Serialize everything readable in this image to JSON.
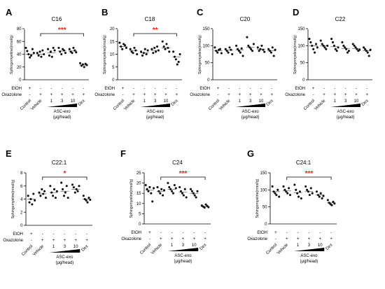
{
  "treatment_rows": {
    "labels": [
      "EtOH",
      "Oxazolone"
    ],
    "etoh": [
      "+",
      "-",
      "-",
      "-",
      "-",
      "-"
    ],
    "oxazolone": [
      "-",
      "+",
      "+",
      "+",
      "+",
      "+"
    ]
  },
  "group_labels": [
    "Control",
    "Vehicle",
    "1",
    "3",
    "10",
    "Dex"
  ],
  "dose_label": "ASC-exo",
  "dose_unit": "(μg/head)",
  "colors": {
    "significance": "#e8231f",
    "points": "#111111",
    "mean_bar": "#555555"
  },
  "chart_data": [
    {
      "type": "scatter",
      "panel": "A",
      "title": "C16",
      "ylabel": "Sphingomyeline(nmol/g)",
      "ylim": [
        0,
        80
      ],
      "yticks": [
        0,
        20,
        40,
        60,
        80
      ],
      "means": [
        40,
        40,
        42,
        45,
        45,
        23
      ],
      "points": [
        [
          50,
          45,
          40,
          35,
          38,
          48,
          42
        ],
        [
          42,
          38,
          44,
          36,
          46,
          40
        ],
        [
          48,
          38,
          44,
          36,
          50,
          46
        ],
        [
          50,
          44,
          40,
          48,
          46,
          42
        ],
        [
          48,
          44,
          42,
          50,
          46,
          43
        ],
        [
          26,
          22,
          24,
          20,
          25,
          23
        ]
      ],
      "significance": {
        "label": "***",
        "from": 1,
        "to": 5
      }
    },
    {
      "type": "scatter",
      "panel": "B",
      "title": "C18",
      "ylabel": "Sphingomyeline(nmol/g)",
      "ylim": [
        0,
        20
      ],
      "yticks": [
        0,
        5,
        10,
        15,
        20
      ],
      "means": [
        13,
        11.5,
        10.5,
        11.5,
        12.5,
        9
      ],
      "points": [
        [
          14.5,
          13,
          12,
          14,
          13.5,
          12.5
        ],
        [
          12,
          11,
          10.5,
          12.5,
          11.5,
          10
        ],
        [
          11,
          9.5,
          10.5,
          12,
          10,
          11.5
        ],
        [
          12,
          10.5,
          12.5,
          11,
          13,
          11.5
        ],
        [
          15,
          13,
          12,
          14,
          12.5,
          11
        ],
        [
          11,
          9,
          8,
          6,
          7,
          10
        ]
      ],
      "significance": {
        "label": "**",
        "from": 1,
        "to": 5
      }
    },
    {
      "type": "scatter",
      "panel": "C",
      "title": "C20",
      "ylabel": "Sphingomyeline(nmol/g)",
      "ylim": [
        0,
        150
      ],
      "yticks": [
        0,
        50,
        100,
        150
      ],
      "means": [
        85,
        87,
        88,
        95,
        90,
        85
      ],
      "points": [
        [
          95,
          85,
          80,
          88,
          90,
          78
        ],
        [
          90,
          85,
          80,
          95,
          88,
          75
        ],
        [
          100,
          90,
          85,
          80,
          92,
          70
        ],
        [
          125,
          100,
          95,
          90,
          85,
          105
        ],
        [
          95,
          85,
          90,
          100,
          88,
          82
        ],
        [
          90,
          85,
          80,
          95,
          70,
          88
        ]
      ],
      "significance": null
    },
    {
      "type": "scatter",
      "panel": "D",
      "title": "C22",
      "ylabel": "Sphingomyeline(nmol/g)",
      "ylim": [
        0,
        150
      ],
      "yticks": [
        0,
        50,
        100,
        150
      ],
      "means": [
        100,
        100,
        97,
        92,
        92,
        85
      ],
      "points": [
        [
          120,
          110,
          100,
          90,
          80,
          105,
          95
        ],
        [
          115,
          105,
          100,
          95,
          90,
          100
        ],
        [
          120,
          110,
          100,
          90,
          85,
          95
        ],
        [
          110,
          100,
          95,
          90,
          80,
          85
        ],
        [
          105,
          100,
          95,
          90,
          85,
          88
        ],
        [
          95,
          90,
          85,
          80,
          70,
          88
        ]
      ],
      "significance": null
    },
    {
      "type": "scatter",
      "panel": "E",
      "title": "C22:1",
      "ylabel": "Sphingomyeline(nmol/g)",
      "ylim": [
        0,
        8
      ],
      "yticks": [
        0,
        2,
        4,
        6,
        8
      ],
      "means": [
        4,
        4.8,
        5,
        5.2,
        5.5,
        4
      ],
      "points": [
        [
          4.5,
          3.5,
          4,
          3.2,
          4.8,
          3.8
        ],
        [
          5,
          4.5,
          5.5,
          4.8,
          5.2,
          4.2
        ],
        [
          6,
          5,
          4.5,
          5.5,
          4.2,
          5.2
        ],
        [
          6.5,
          5.5,
          4.5,
          5,
          6,
          4.2
        ],
        [
          6.2,
          5.8,
          5,
          5.5,
          5.2,
          6
        ],
        [
          4.5,
          4,
          3.8,
          3.5,
          4.2,
          3.9
        ]
      ],
      "significance": {
        "label": "*",
        "from": 1,
        "to": 5
      }
    },
    {
      "type": "scatter",
      "panel": "F",
      "title": "C24",
      "ylabel": "Sphingomyeline(nmol/g)",
      "ylim": [
        0,
        25
      ],
      "yticks": [
        0,
        5,
        10,
        15,
        20,
        25
      ],
      "means": [
        16.5,
        16,
        17,
        15.5,
        15,
        8.5
      ],
      "points": [
        [
          19,
          17,
          16,
          18,
          15,
          11,
          17.5
        ],
        [
          18,
          16,
          15,
          17,
          14,
          16.5
        ],
        [
          20,
          18,
          17,
          16,
          15,
          19,
          17.5
        ],
        [
          18,
          16,
          15,
          14,
          17,
          13
        ],
        [
          17,
          16,
          15,
          14,
          13,
          16
        ],
        [
          9,
          8.5,
          8,
          9.5,
          8.8,
          8.2
        ]
      ],
      "significance": {
        "label": "***",
        "from": 1,
        "to": 5
      }
    },
    {
      "type": "scatter",
      "panel": "G",
      "title": "C24:1",
      "ylabel": "Sphingomyeline(nmol/g)",
      "ylim": [
        0,
        150
      ],
      "yticks": [
        0,
        50,
        100,
        150
      ],
      "means": [
        95,
        97,
        92,
        95,
        85,
        62
      ],
      "points": [
        [
          110,
          95,
          90,
          85,
          100,
          80
        ],
        [
          110,
          100,
          95,
          90,
          105,
          85
        ],
        [
          115,
          100,
          90,
          80,
          95,
          75
        ],
        [
          110,
          100,
          95,
          85,
          105,
          90
        ],
        [
          95,
          85,
          80,
          90,
          75,
          82
        ],
        [
          70,
          62,
          58,
          55,
          65,
          60
        ]
      ],
      "significance": {
        "label": "***",
        "from": 1,
        "to": 5
      }
    }
  ]
}
